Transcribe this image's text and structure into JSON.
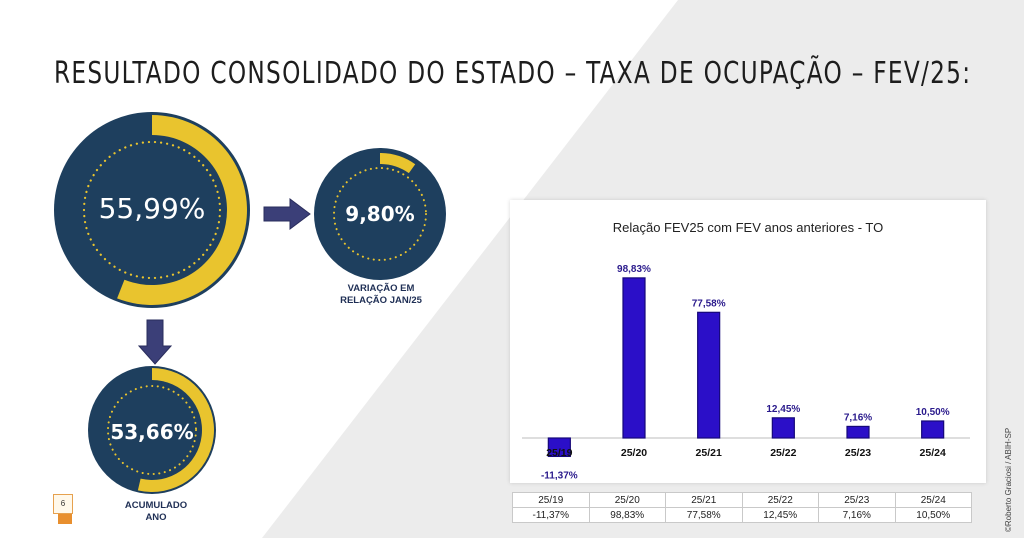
{
  "slide": {
    "title": "RESULTADO CONSOLIDADO DO ESTADO – TAXA DE OCUPAÇÃO – FEV/25:",
    "page_number": "6",
    "credit": "©Roberto Graciosi / ABIH-SP"
  },
  "gauges": {
    "main": {
      "value_label": "55,99%",
      "value": 55.99
    },
    "variation": {
      "value_label": "9,80%",
      "value": 9.8,
      "caption": "VARIAÇÃO EM\nRELAÇÃO JAN/25"
    },
    "accumulated": {
      "value_label": "53,66%",
      "value": 53.66,
      "caption": "ACUMULADO\nANO"
    }
  },
  "colors": {
    "navy": "#1e3f5e",
    "gold": "#e9c42e",
    "bar": "#2b0fc8",
    "bar_label": "#2a1a8c",
    "arrow": "#3b3f78"
  },
  "chart_data": {
    "type": "bar",
    "title": "Relação FEV25 com FEV anos anteriores  - TO",
    "categories": [
      "25/19",
      "25/20",
      "25/21",
      "25/22",
      "25/23",
      "25/24"
    ],
    "values": [
      -11.37,
      98.83,
      77.58,
      12.45,
      7.16,
      10.5
    ],
    "value_labels": [
      "-11,37%",
      "98,83%",
      "77,58%",
      "12,45%",
      "7,16%",
      "10,50%"
    ],
    "xlabel": "",
    "ylabel": "",
    "ylim": [
      -13,
      100
    ],
    "grid": false,
    "legend": "none"
  },
  "table": {
    "headers": [
      "25/19",
      "25/20",
      "25/21",
      "25/22",
      "25/23",
      "25/24"
    ],
    "values": [
      "-11,37%",
      "98,83%",
      "77,58%",
      "12,45%",
      "7,16%",
      "10,50%"
    ]
  }
}
